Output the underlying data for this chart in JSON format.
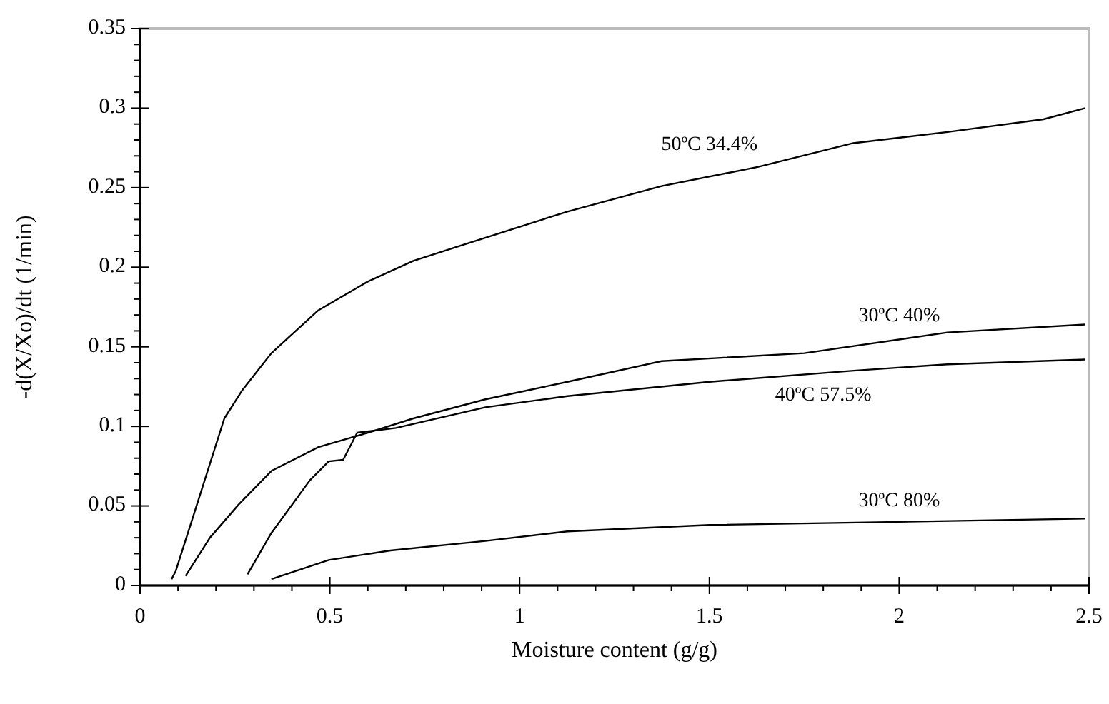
{
  "chart_data": {
    "type": "line",
    "xlabel": "Moisture content (g/g)",
    "ylabel": "-d(X/Xo)/dt (1/min)",
    "xlim": [
      0,
      2.5
    ],
    "ylim": [
      0,
      0.35
    ],
    "xticks": [
      0,
      {
        "value": 0.1,
        "label": null
      },
      {
        "value": 0.2,
        "label": null
      },
      {
        "value": 0.3,
        "label": null
      },
      {
        "value": 0.4,
        "label": null
      },
      0.5,
      {
        "value": 0.6,
        "label": null
      },
      {
        "value": 0.7,
        "label": null
      },
      {
        "value": 0.8,
        "label": null
      },
      {
        "value": 0.9,
        "label": null
      },
      1,
      {
        "value": 1.1,
        "label": null
      },
      {
        "value": 1.2,
        "label": null
      },
      {
        "value": 1.3,
        "label": null
      },
      {
        "value": 1.4,
        "label": null
      },
      1.5,
      {
        "value": 1.6,
        "label": null
      },
      {
        "value": 1.7,
        "label": null
      },
      {
        "value": 1.8,
        "label": null
      },
      {
        "value": 1.9,
        "label": null
      },
      2,
      {
        "value": 2.1,
        "label": null
      },
      {
        "value": 2.2,
        "label": null
      },
      {
        "value": 2.3,
        "label": null
      },
      {
        "value": 2.4,
        "label": null
      },
      2.5
    ],
    "yticks": [
      0,
      {
        "value": 0.01,
        "label": null
      },
      {
        "value": 0.02,
        "label": null
      },
      {
        "value": 0.03,
        "label": null
      },
      {
        "value": 0.04,
        "label": null
      },
      0.05,
      {
        "value": 0.06,
        "label": null
      },
      {
        "value": 0.07,
        "label": null
      },
      {
        "value": 0.08,
        "label": null
      },
      {
        "value": 0.09,
        "label": null
      },
      0.1,
      {
        "value": 0.11,
        "label": null
      },
      {
        "value": 0.12,
        "label": null
      },
      {
        "value": 0.13,
        "label": null
      },
      {
        "value": 0.14,
        "label": null
      },
      0.15,
      {
        "value": 0.16,
        "label": null
      },
      {
        "value": 0.17,
        "label": null
      },
      {
        "value": 0.18,
        "label": null
      },
      {
        "value": 0.19,
        "label": null
      },
      0.2,
      {
        "value": 0.21,
        "label": null
      },
      {
        "value": 0.22,
        "label": null
      },
      {
        "value": 0.23,
        "label": null
      },
      {
        "value": 0.24,
        "label": null
      },
      0.25,
      {
        "value": 0.26,
        "label": null
      },
      {
        "value": 0.27,
        "label": null
      },
      {
        "value": 0.28,
        "label": null
      },
      {
        "value": 0.29,
        "label": null
      },
      0.3,
      {
        "value": 0.31,
        "label": null
      },
      {
        "value": 0.32,
        "label": null
      },
      {
        "value": 0.33,
        "label": null
      },
      {
        "value": 0.34,
        "label": null
      },
      0.35
    ],
    "grid": false,
    "marker": "none",
    "line_style": "solid",
    "series": [
      {
        "name": "50ºC 34.4%",
        "color": "#000000",
        "x": [
          0.083,
          0.094,
          0.13,
          0.166,
          0.222,
          0.27,
          0.346,
          0.47,
          0.6,
          0.72,
          0.85,
          1.126,
          1.374,
          1.627,
          1.879,
          2.127,
          2.38,
          2.49
        ],
        "values": [
          0.004,
          0.009,
          0.036,
          0.063,
          0.105,
          0.123,
          0.146,
          0.173,
          0.191,
          0.204,
          0.214,
          0.235,
          0.251,
          0.263,
          0.278,
          0.285,
          0.293,
          0.3
        ]
      },
      {
        "name": "30ºC 40%",
        "color": "#000000",
        "x": [
          0.12,
          0.184,
          0.26,
          0.346,
          0.47,
          0.6,
          0.72,
          0.91,
          1.126,
          1.374,
          1.75,
          2.127,
          2.49
        ],
        "values": [
          0.006,
          0.03,
          0.051,
          0.072,
          0.087,
          0.096,
          0.105,
          0.117,
          0.128,
          0.141,
          0.146,
          0.159,
          0.164
        ]
      },
      {
        "name": "40ºC 57.5%",
        "color": "#000000",
        "x": [
          0.283,
          0.346,
          0.447,
          0.497,
          0.535,
          0.572,
          0.674,
          0.91,
          1.126,
          1.5,
          1.88,
          2.127,
          2.49
        ],
        "values": [
          0.007,
          0.033,
          0.066,
          0.078,
          0.079,
          0.096,
          0.099,
          0.112,
          0.119,
          0.128,
          0.135,
          0.139,
          0.142
        ]
      },
      {
        "name": "30ºC 80%",
        "color": "#000000",
        "x": [
          0.346,
          0.497,
          0.66,
          0.91,
          1.126,
          1.5,
          2.0,
          2.49
        ],
        "values": [
          0.004,
          0.016,
          0.022,
          0.028,
          0.034,
          0.038,
          0.04,
          0.042
        ]
      }
    ]
  }
}
